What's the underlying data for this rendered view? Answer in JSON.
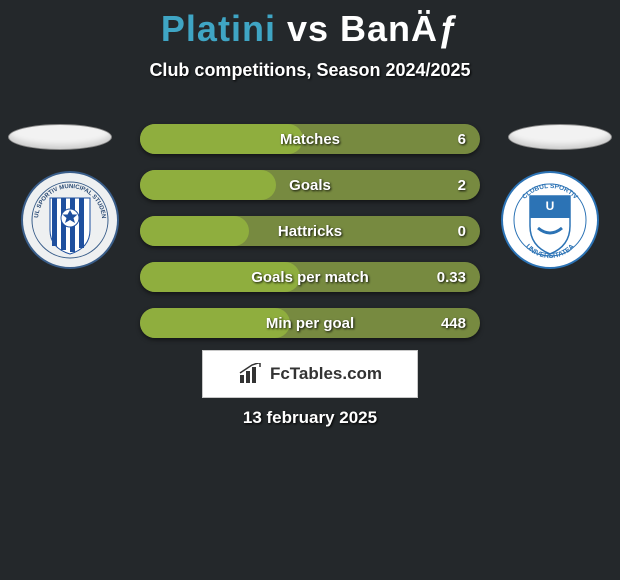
{
  "title": {
    "left": "Platini",
    "vs": "vs",
    "right": "BanÄƒ",
    "left_color": "#3fa5c4",
    "right_color": "#ffffff",
    "vs_color": "#ffffff"
  },
  "subtitle": "Club competitions, Season 2024/2025",
  "oval": {
    "bg": "#f2f2f2",
    "border": "#888888"
  },
  "badge_left": {
    "ring_bg": "#eef0f1",
    "ring_border": "#3a5e8a",
    "stripe_colors": [
      "#1e4f9e",
      "#ffffff"
    ],
    "ball_color": "#1e4f9e"
  },
  "badge_right": {
    "ring_bg": "#ffffff",
    "ring_border": "#2c73b5",
    "inner_top": "#2c73b5",
    "inner_bottom": "#ffffff",
    "text": "UNIVERSITATEA",
    "text2": "CRAIOVA"
  },
  "stats": {
    "row_bg": "#778a40",
    "fill_color": "#8fae3e",
    "rows": [
      {
        "label": "Matches",
        "value": "6",
        "fill_pct": 48
      },
      {
        "label": "Goals",
        "value": "2",
        "fill_pct": 40
      },
      {
        "label": "Hattricks",
        "value": "0",
        "fill_pct": 32
      },
      {
        "label": "Goals per match",
        "value": "0.33",
        "fill_pct": 47
      },
      {
        "label": "Min per goal",
        "value": "448",
        "fill_pct": 44
      }
    ]
  },
  "brand": {
    "text": "FcTables.com",
    "icon_color": "#333333"
  },
  "date": "13 february 2025",
  "background_color": "#24282b"
}
